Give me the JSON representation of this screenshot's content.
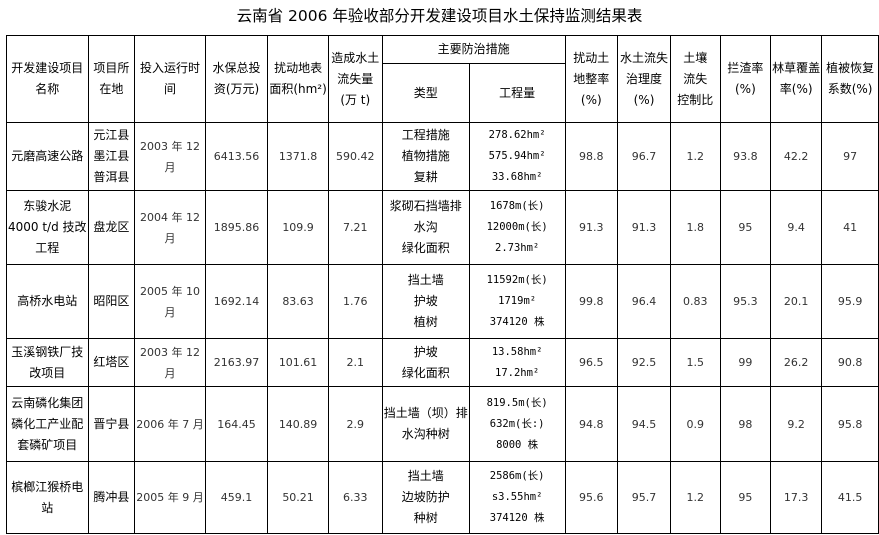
{
  "title": "云南省 2006 年验收部分开发建设项目水土保持监测结果表",
  "headers": {
    "name": [
      "开发建设项目",
      "名称"
    ],
    "location": [
      "项目所",
      "在地"
    ],
    "start": [
      "投入运行时",
      "间"
    ],
    "invest": [
      "水保总投",
      "资(万元)"
    ],
    "area": [
      "扰动地表",
      "面积(hm²)"
    ],
    "loss": [
      "造成水土",
      "流失量",
      "(万 t)"
    ],
    "measures": "主要防治措施",
    "type": "类型",
    "quantity": "工程量",
    "land_rate": [
      "扰动土",
      "地整率",
      "(%)"
    ],
    "control": [
      "水土流失",
      "治理度",
      "(%)"
    ],
    "soil_ratio": [
      "土壤",
      "流失",
      "控制比"
    ],
    "slag": [
      "拦渣率",
      "(%)"
    ],
    "cover": [
      "林草覆盖",
      "率(%)"
    ],
    "veg": [
      "植被恢复",
      "系数(%)"
    ]
  },
  "rows": [
    {
      "name": [
        "元磨高速公路"
      ],
      "location": [
        "元江县",
        "墨江县",
        "普洱县"
      ],
      "start": [
        "2003 年 12",
        "月"
      ],
      "invest": "6413.56",
      "area": "1371.8",
      "loss": "590.42",
      "type": [
        "工程措施",
        "植物措施",
        "复耕"
      ],
      "quantity": [
        "278.62hm²",
        "575.94hm²",
        "33.68hm²"
      ],
      "land_rate": "98.8",
      "control": "96.7",
      "soil_ratio": "1.2",
      "slag": "93.8",
      "cover": "42.2",
      "veg": "97"
    },
    {
      "name": [
        "东骏水泥",
        "4000 t/d 技改",
        "工程"
      ],
      "location": [
        "盘龙区"
      ],
      "start": [
        "2004 年 12",
        "月"
      ],
      "invest": "1895.86",
      "area": "109.9",
      "loss": "7.21",
      "type": [
        "浆砌石挡墙排",
        "水沟",
        "绿化面积"
      ],
      "quantity": [
        "1678m(长)",
        "12000m(长)",
        "2.73hm²"
      ],
      "land_rate": "91.3",
      "control": "91.3",
      "soil_ratio": "1.8",
      "slag": "95",
      "cover": "9.4",
      "veg": "41"
    },
    {
      "name": [
        "高桥水电站"
      ],
      "location": [
        "昭阳区"
      ],
      "start": [
        "2005 年 10",
        "月"
      ],
      "invest": "1692.14",
      "area": "83.63",
      "loss": "1.76",
      "type": [
        "挡土墙",
        "护坡",
        "植树"
      ],
      "quantity": [
        "11592m(长)",
        "1719m²",
        "374120 株"
      ],
      "land_rate": "99.8",
      "control": "96.4",
      "soil_ratio": "0.83",
      "slag": "95.3",
      "cover": "20.1",
      "veg": "95.9"
    },
    {
      "name": [
        "玉溪钢铁厂技",
        "改项目"
      ],
      "location": [
        "红塔区"
      ],
      "start": [
        "2003 年 12",
        "月"
      ],
      "invest": "2163.97",
      "area": "101.61",
      "loss": "2.1",
      "type": [
        "护坡",
        "绿化面积"
      ],
      "quantity": [
        "13.58hm²",
        "17.2hm²"
      ],
      "land_rate": "96.5",
      "control": "92.5",
      "soil_ratio": "1.5",
      "slag": "99",
      "cover": "26.2",
      "veg": "90.8"
    },
    {
      "name": [
        "云南磷化集团",
        "磷化工产业配",
        "套磷矿项目"
      ],
      "location": [
        "晋宁县"
      ],
      "start": [
        "2006 年 7 月"
      ],
      "invest": "164.45",
      "area": "140.89",
      "loss": "2.9",
      "type": [
        "挡土墙（坝）排",
        "水沟种树"
      ],
      "quantity": [
        "819.5m(长)",
        "632m(长:)",
        "8000 株"
      ],
      "land_rate": "94.8",
      "control": "94.5",
      "soil_ratio": "0.9",
      "slag": "98",
      "cover": "9.2",
      "veg": "95.8"
    },
    {
      "name": [
        "槟榔江猴桥电",
        "站"
      ],
      "location": [
        "腾冲县"
      ],
      "start": [
        "2005 年 9 月"
      ],
      "invest": "459.1",
      "area": "50.21",
      "loss": "6.33",
      "type": [
        "挡土墙",
        "边坡防护",
        "种树"
      ],
      "quantity": [
        "2586m(长)",
        "s3.55hm²",
        "374120 株"
      ],
      "land_rate": "95.6",
      "control": "95.7",
      "soil_ratio": "1.2",
      "slag": "95",
      "cover": "17.3",
      "veg": "41.5"
    }
  ]
}
